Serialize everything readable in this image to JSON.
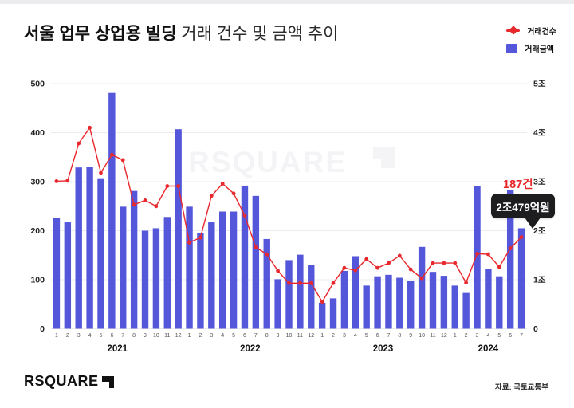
{
  "title": {
    "bold": "서울 업무 상업용 빌딩",
    "regular": " 거래 건수 및 금액 추이"
  },
  "legend": {
    "count_label": "거래건수",
    "amount_label": "거래금액"
  },
  "annotation": {
    "count_label": "187건",
    "amount_label": "2조479억원"
  },
  "watermark": "RSQUARE",
  "footer": {
    "logo_text": "RSQUARE",
    "source": "자료: 국토교통부"
  },
  "colors": {
    "bar": "#5557DA",
    "line": "#E8282D",
    "grid": "#ECECEE",
    "axis_text": "#222222",
    "month_text": "#555555",
    "watermark": "#F4F4F6",
    "callout_red": "#E62629",
    "tooltip_bg": "#1D1D1F"
  },
  "chart_data": {
    "type": "bar+line combo",
    "title": "서울 업무 상업용 빌딩 거래 건수 및 금액 추이",
    "legend_position": "top-right",
    "grid": true,
    "x_months": [
      "1",
      "2",
      "3",
      "4",
      "5",
      "6",
      "7",
      "8",
      "9",
      "10",
      "11",
      "12",
      "1",
      "2",
      "3",
      "4",
      "5",
      "6",
      "7",
      "8",
      "9",
      "10",
      "11",
      "12",
      "1",
      "2",
      "3",
      "4",
      "5",
      "6",
      "7",
      "8",
      "9",
      "10",
      "11",
      "12",
      "1",
      "2",
      "3",
      "4",
      "5",
      "6",
      "7"
    ],
    "year_groups": [
      {
        "label": "2021",
        "count": 12
      },
      {
        "label": "2022",
        "count": 12
      },
      {
        "label": "2023",
        "count": 12
      },
      {
        "label": "2024",
        "count": 7
      }
    ],
    "left_axis": {
      "series": "거래건수",
      "unit": "건",
      "ticks": [
        "0",
        "100",
        "200",
        "300",
        "400",
        "500"
      ],
      "range": [
        0,
        500
      ]
    },
    "right_axis": {
      "series": "거래금액",
      "unit": "조원",
      "ticks": [
        "0",
        "1조",
        "2조",
        "3조",
        "4조",
        "5조"
      ],
      "range": [
        0,
        5
      ]
    },
    "series": [
      {
        "name": "거래건수",
        "type": "line",
        "axis": "left",
        "unit": "건",
        "values": [
          301,
          302,
          378,
          410,
          318,
          355,
          344,
          253,
          262,
          250,
          291,
          291,
          176,
          186,
          271,
          296,
          276,
          231,
          166,
          152,
          118,
          93,
          93,
          93,
          55,
          93,
          124,
          119,
          142,
          124,
          134,
          149,
          121,
          103,
          134,
          134,
          134,
          94,
          153,
          152,
          126,
          164,
          187
        ]
      },
      {
        "name": "거래금액",
        "type": "bar",
        "axis": "right",
        "unit": "조원",
        "values": [
          2.26,
          2.17,
          3.29,
          3.3,
          3.07,
          4.81,
          2.49,
          2.81,
          2.0,
          2.05,
          2.28,
          4.07,
          2.49,
          1.96,
          2.17,
          2.39,
          2.39,
          2.92,
          2.71,
          1.83,
          1.01,
          1.4,
          1.51,
          1.3,
          0.53,
          0.62,
          1.18,
          1.48,
          0.88,
          1.07,
          1.1,
          1.04,
          0.97,
          1.67,
          1.16,
          1.08,
          0.88,
          0.73,
          2.91,
          1.22,
          1.07,
          2.83,
          2.05
        ]
      }
    ],
    "highlight": {
      "month": "2024-7",
      "count": 187,
      "amount_label": "2조479억원"
    }
  }
}
